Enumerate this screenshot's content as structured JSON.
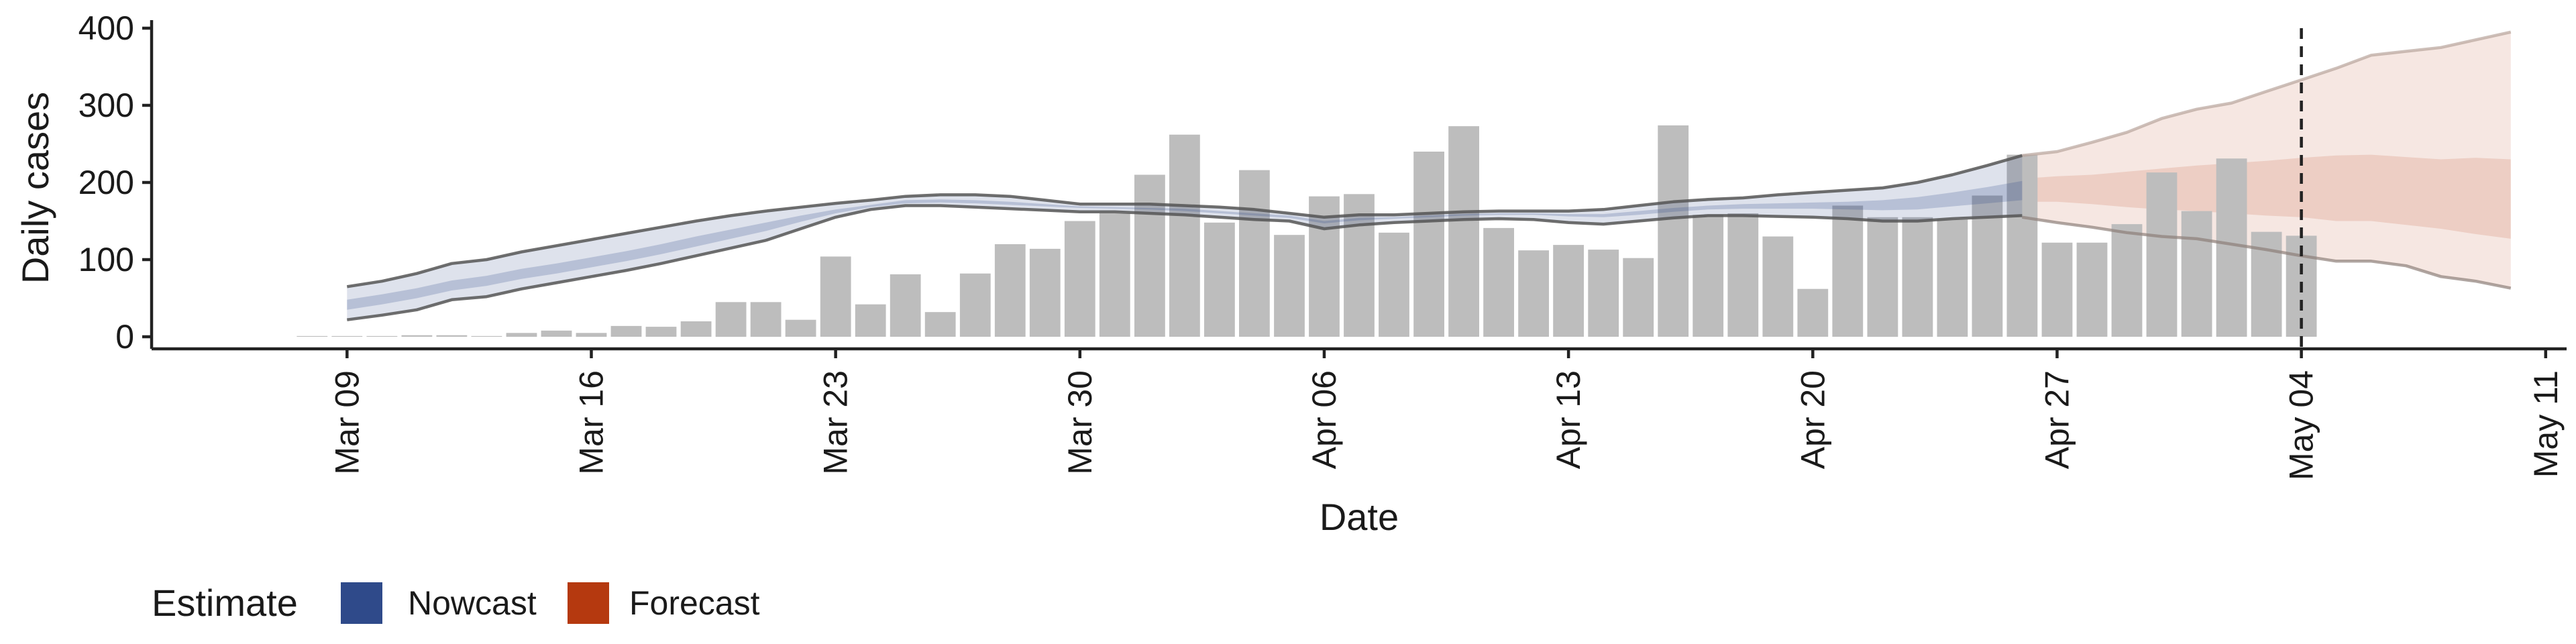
{
  "chart_data": {
    "type": "bar",
    "xlabel": "Date",
    "ylabel": "Daily cases",
    "ylim": [
      0,
      400
    ],
    "yticks": [
      0,
      100,
      200,
      300,
      400
    ],
    "xlim": [
      "2020-03-04",
      "2020-05-11"
    ],
    "xticks": [
      {
        "date": "2020-03-09",
        "label": "Mar 09"
      },
      {
        "date": "2020-03-16",
        "label": "Mar 16"
      },
      {
        "date": "2020-03-23",
        "label": "Mar 23"
      },
      {
        "date": "2020-03-30",
        "label": "Mar 30"
      },
      {
        "date": "2020-04-06",
        "label": "Apr 06"
      },
      {
        "date": "2020-04-13",
        "label": "Apr 13"
      },
      {
        "date": "2020-04-20",
        "label": "Apr 20"
      },
      {
        "date": "2020-04-27",
        "label": "Apr 27"
      },
      {
        "date": "2020-05-04",
        "label": "May 04"
      },
      {
        "date": "2020-05-11",
        "label": "May 11"
      }
    ],
    "reference_line": {
      "date": "2020-05-04",
      "style": "dashed"
    },
    "legend": {
      "title": "Estimate",
      "position": "bottom-left",
      "entries": [
        {
          "label": "Nowcast",
          "color": "#2f4a8a"
        },
        {
          "label": "Forecast",
          "color": "#b5390f"
        }
      ]
    },
    "bar_color": "#bdbdbd",
    "observed": {
      "dates": [
        "2020-03-08",
        "2020-03-09",
        "2020-03-10",
        "2020-03-11",
        "2020-03-12",
        "2020-03-13",
        "2020-03-14",
        "2020-03-15",
        "2020-03-16",
        "2020-03-17",
        "2020-03-18",
        "2020-03-19",
        "2020-03-20",
        "2020-03-21",
        "2020-03-22",
        "2020-03-23",
        "2020-03-24",
        "2020-03-25",
        "2020-03-26",
        "2020-03-27",
        "2020-03-28",
        "2020-03-29",
        "2020-03-30",
        "2020-03-31",
        "2020-04-01",
        "2020-04-02",
        "2020-04-03",
        "2020-04-04",
        "2020-04-05",
        "2020-04-06",
        "2020-04-07",
        "2020-04-08",
        "2020-04-09",
        "2020-04-10",
        "2020-04-11",
        "2020-04-12",
        "2020-04-13",
        "2020-04-14",
        "2020-04-15",
        "2020-04-16",
        "2020-04-17",
        "2020-04-18",
        "2020-04-19",
        "2020-04-20",
        "2020-04-21",
        "2020-04-22",
        "2020-04-23",
        "2020-04-24",
        "2020-04-25",
        "2020-04-26",
        "2020-04-27",
        "2020-04-28",
        "2020-04-29",
        "2020-04-30",
        "2020-05-01",
        "2020-05-02",
        "2020-05-03",
        "2020-05-04"
      ],
      "values": [
        1,
        1,
        1,
        2,
        2,
        1,
        5,
        8,
        5,
        14,
        13,
        20,
        45,
        45,
        22,
        104,
        42,
        81,
        32,
        82,
        120,
        114,
        150,
        160,
        210,
        262,
        148,
        216,
        132,
        182,
        185,
        135,
        240,
        273,
        141,
        112,
        119,
        113,
        102,
        274,
        158,
        160,
        130,
        62,
        170,
        155,
        155,
        152,
        183,
        236,
        122,
        122,
        146,
        213,
        163,
        231,
        136,
        131
      ]
    },
    "nowcast": {
      "color": "#2f4a8a",
      "dates": [
        "2020-03-09",
        "2020-03-10",
        "2020-03-11",
        "2020-03-12",
        "2020-03-13",
        "2020-03-14",
        "2020-03-15",
        "2020-03-16",
        "2020-03-17",
        "2020-03-18",
        "2020-03-19",
        "2020-03-20",
        "2020-03-21",
        "2020-03-22",
        "2020-03-23",
        "2020-03-24",
        "2020-03-25",
        "2020-03-26",
        "2020-03-27",
        "2020-03-28",
        "2020-03-29",
        "2020-03-30",
        "2020-03-31",
        "2020-04-01",
        "2020-04-02",
        "2020-04-03",
        "2020-04-04",
        "2020-04-05",
        "2020-04-06",
        "2020-04-07",
        "2020-04-08",
        "2020-04-09",
        "2020-04-10",
        "2020-04-11",
        "2020-04-12",
        "2020-04-13",
        "2020-04-14",
        "2020-04-15",
        "2020-04-16",
        "2020-04-17",
        "2020-04-18",
        "2020-04-19",
        "2020-04-20",
        "2020-04-21",
        "2020-04-22",
        "2020-04-23",
        "2020-04-24",
        "2020-04-25",
        "2020-04-26"
      ],
      "lower_90": [
        22,
        28,
        35,
        48,
        52,
        62,
        70,
        78,
        86,
        95,
        105,
        115,
        125,
        140,
        155,
        165,
        170,
        170,
        168,
        166,
        164,
        162,
        162,
        160,
        158,
        155,
        152,
        150,
        140,
        145,
        148,
        150,
        152,
        153,
        152,
        148,
        146,
        150,
        154,
        157,
        157,
        156,
        155,
        153,
        150,
        150,
        153,
        155,
        157
      ],
      "upper_90": [
        65,
        72,
        82,
        95,
        100,
        110,
        118,
        126,
        134,
        142,
        150,
        157,
        163,
        168,
        173,
        177,
        182,
        184,
        184,
        182,
        177,
        172,
        172,
        172,
        170,
        168,
        165,
        160,
        155,
        158,
        158,
        160,
        162,
        163,
        163,
        163,
        165,
        170,
        175,
        178,
        180,
        184,
        187,
        190,
        193,
        200,
        210,
        222,
        235
      ],
      "lower_50": [
        35,
        42,
        50,
        60,
        66,
        75,
        82,
        90,
        98,
        107,
        117,
        127,
        137,
        149,
        160,
        168,
        173,
        174,
        173,
        171,
        169,
        167,
        166,
        165,
        163,
        160,
        157,
        154,
        147,
        151,
        153,
        155,
        157,
        158,
        158,
        156,
        155,
        158,
        162,
        165,
        166,
        166,
        166,
        165,
        164,
        165,
        169,
        173,
        177
      ],
      "upper_50": [
        48,
        55,
        63,
        73,
        79,
        88,
        95,
        103,
        111,
        120,
        130,
        139,
        148,
        157,
        165,
        171,
        177,
        178,
        177,
        175,
        172,
        169,
        168,
        167,
        166,
        163,
        160,
        157,
        150,
        154,
        155,
        157,
        159,
        160,
        160,
        159,
        159,
        163,
        167,
        170,
        172,
        173,
        174,
        175,
        177,
        181,
        187,
        194,
        202
      ]
    },
    "forecast": {
      "color": "#b5390f",
      "dates": [
        "2020-04-26",
        "2020-04-27",
        "2020-04-28",
        "2020-04-29",
        "2020-04-30",
        "2020-05-01",
        "2020-05-02",
        "2020-05-03",
        "2020-05-04",
        "2020-05-05",
        "2020-05-06",
        "2020-05-07",
        "2020-05-08",
        "2020-05-09",
        "2020-05-10"
      ],
      "lower_90": [
        155,
        148,
        142,
        135,
        130,
        127,
        120,
        113,
        105,
        98,
        98,
        92,
        78,
        72,
        63
      ],
      "upper_90": [
        235,
        240,
        252,
        265,
        283,
        295,
        303,
        318,
        333,
        348,
        365,
        370,
        375,
        385,
        395
      ],
      "lower_50": [
        175,
        175,
        172,
        168,
        165,
        163,
        160,
        157,
        155,
        150,
        150,
        145,
        140,
        133,
        127
      ],
      "upper_50": [
        205,
        208,
        210,
        214,
        218,
        222,
        225,
        228,
        232,
        235,
        236,
        233,
        230,
        232,
        230
      ]
    }
  }
}
